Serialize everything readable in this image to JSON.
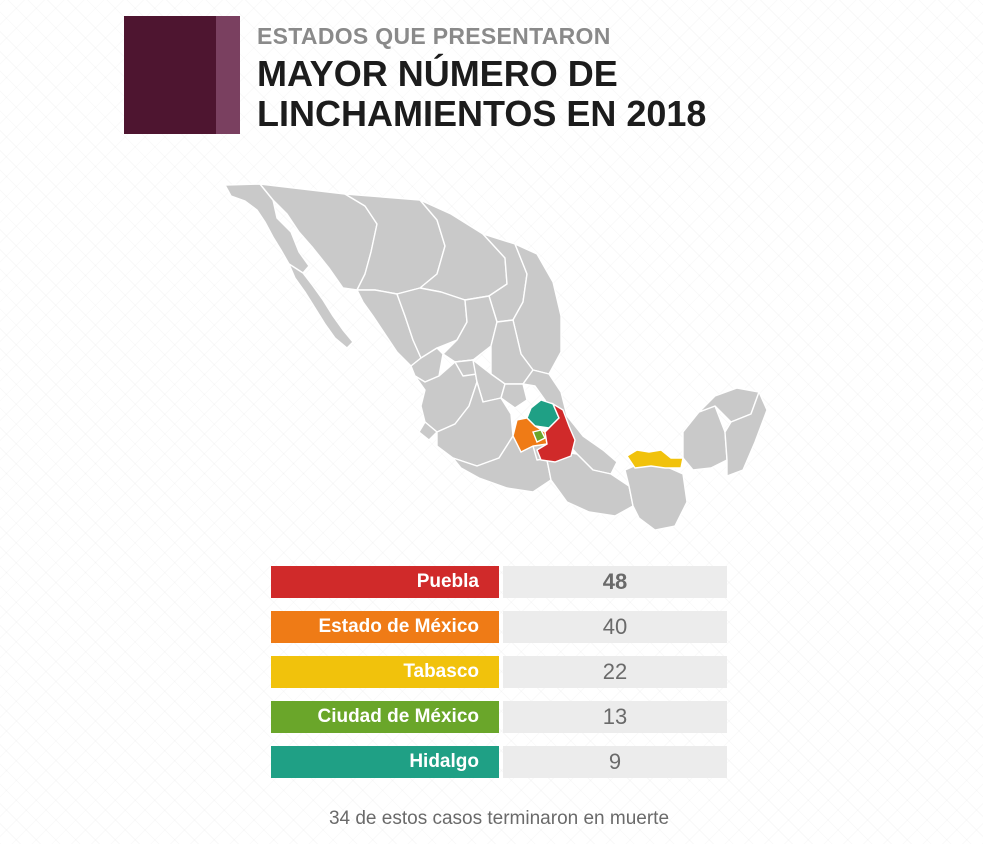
{
  "header": {
    "subtitle": "ESTADOS QUE PRESENTARON",
    "title": "MAYOR NÚMERO DE LINCHAMIENTOS EN 2018",
    "accent_dark": "#4e1530",
    "accent_light": "#7a4060"
  },
  "map": {
    "base_color": "#c9c9c9",
    "highlighted_states": [
      {
        "name": "Puebla",
        "color": "#d02a2a"
      },
      {
        "name": "Estado de México",
        "color": "#ef7b16"
      },
      {
        "name": "Tabasco",
        "color": "#f1c20c"
      },
      {
        "name": "Ciudad de México",
        "color": "#6aa62a"
      },
      {
        "name": "Hidalgo",
        "color": "#1fa085"
      }
    ]
  },
  "ranking": [
    {
      "state": "Puebla",
      "count": "48",
      "color": "#d02a2a"
    },
    {
      "state": "Estado de México",
      "count": "40",
      "color": "#ef7b16"
    },
    {
      "state": "Tabasco",
      "count": "22",
      "color": "#f1c20c"
    },
    {
      "state": "Ciudad de México",
      "count": "13",
      "color": "#6aa62a"
    },
    {
      "state": "Hidalgo",
      "count": "9",
      "color": "#1fa085"
    }
  ],
  "footnote": "34 de estos casos terminaron en muerte"
}
